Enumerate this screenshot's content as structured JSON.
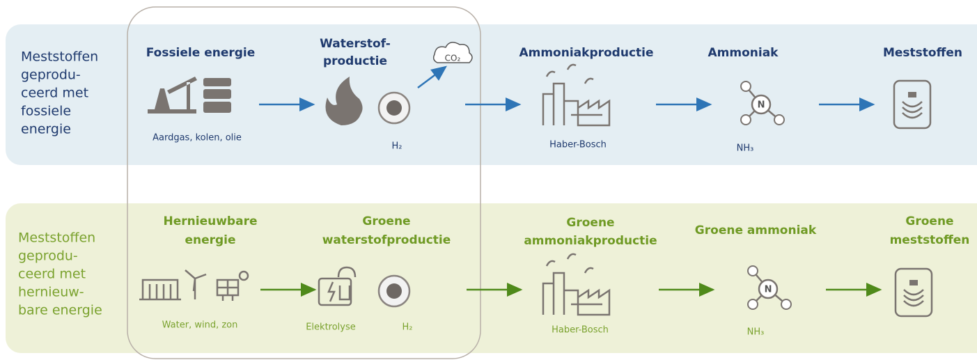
{
  "rows": [
    {
      "label": [
        "Meststoffen",
        "geprodu-",
        "ceerd met",
        "fossiele",
        "energie"
      ],
      "steps": [
        {
          "title": [
            "Fossiele energie"
          ],
          "caption": "Aardgas, kolen, olie"
        },
        {
          "title": [
            "Waterstof-",
            "productie"
          ],
          "caption": "H₂",
          "note": "CO₂"
        },
        {
          "title": [
            "Ammoniakproductie"
          ],
          "caption": "Haber-Bosch"
        },
        {
          "title": [
            "Ammoniak"
          ],
          "caption": "NH₃"
        },
        {
          "title": [
            "Meststoffen"
          ]
        }
      ]
    },
    {
      "label": [
        "Meststoffen",
        "geprodu-",
        "ceerd met",
        "hernieuw-",
        "bare energie"
      ],
      "steps": [
        {
          "title": [
            "Hernieuwbare",
            "energie"
          ],
          "caption": "Water, wind, zon"
        },
        {
          "title": [
            "Groene",
            "waterstofproductie"
          ],
          "captions": [
            "Elektrolyse",
            "H₂"
          ]
        },
        {
          "title": [
            "Groene",
            "ammoniakproductie"
          ],
          "caption": "Haber-Bosch"
        },
        {
          "title": [
            "Groene ammoniak"
          ],
          "caption": "NH₃"
        },
        {
          "title": [
            "Groene",
            "meststoffen"
          ]
        }
      ]
    }
  ]
}
